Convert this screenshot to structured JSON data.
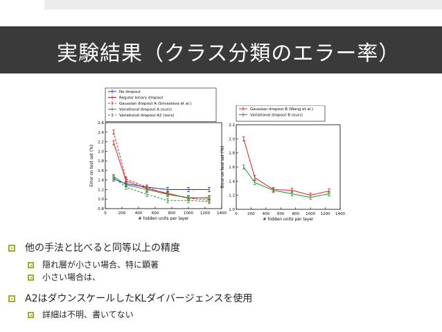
{
  "slide": {
    "title": "実験結果（クラス分類のエラー率）",
    "colors": {
      "title_bar": "#3a3a3a",
      "bullet_accent": "#9aae2e"
    }
  },
  "bullets": [
    {
      "text": "他の手法と比べると同等以上の精度",
      "level": 1
    },
    {
      "text": "隠れ層が小さい場合、特に顕著",
      "level": 2
    },
    {
      "text": "小さい場合は、",
      "level": 2
    },
    {
      "text": "A2はダウンスケールしたKLダイバージェンスを使用",
      "level": 1
    },
    {
      "text": "詳細は不明、書いてない",
      "level": 2
    }
  ],
  "chart_data": [
    {
      "type": "line",
      "xlabel": "# hidden units per layer",
      "ylabel": "Error on test set (%)",
      "xlim": [
        0,
        1400
      ],
      "ylim": [
        0.8,
        2.6
      ],
      "xticks": [
        "0",
        "200",
        "400",
        "600",
        "800",
        "1000",
        "1200",
        "1400"
      ],
      "yticks": [
        "0.8",
        "1.0",
        "1.2",
        "1.4",
        "1.6",
        "1.8",
        "2.0",
        "2.2",
        "2.4",
        "2.6"
      ],
      "legend": "top-left",
      "series": [
        {
          "name": "No dropout",
          "color": "#1f2bd0",
          "dash": false,
          "x": [
            100,
            250,
            500,
            750,
            1000,
            1250
          ],
          "y": [
            1.42,
            1.32,
            1.25,
            1.2,
            1.2,
            1.2
          ]
        },
        {
          "name": "Regular binary dropout",
          "color": "#d42020",
          "dash": false,
          "x": [
            100,
            250,
            500,
            750,
            1000,
            1250
          ],
          "y": [
            2.18,
            1.38,
            1.22,
            1.12,
            1.02,
            1.03
          ]
        },
        {
          "name": "Gaussian dropout A (Srivastava et al.)",
          "color": "#d42020",
          "dash": true,
          "x": [
            100,
            250,
            500,
            750,
            1000,
            1250
          ],
          "y": [
            2.4,
            1.42,
            1.25,
            1.1,
            1.02,
            0.98
          ]
        },
        {
          "name": "Variational dropout A (ours)",
          "color": "#2a8a2a",
          "dash": false,
          "x": [
            100,
            250,
            500,
            750,
            1000,
            1250
          ],
          "y": [
            1.47,
            1.3,
            1.2,
            1.1,
            1.03,
            1.02
          ]
        },
        {
          "name": "Variational dropout A2 (ours)",
          "color": "#2a8a2a",
          "dash": true,
          "x": [
            100,
            250,
            500,
            750,
            1000,
            1250
          ],
          "y": [
            1.45,
            1.25,
            1.1,
            0.97,
            0.97,
            0.95
          ]
        }
      ]
    },
    {
      "type": "line",
      "xlabel": "# hidden units per layer",
      "ylabel": "Error on test set (%)",
      "xlim": [
        0,
        1400
      ],
      "ylim": [
        1.0,
        2.2
      ],
      "xticks": [
        "0",
        "200",
        "400",
        "600",
        "800",
        "1000",
        "1200",
        "1400"
      ],
      "yticks": [
        "1.0",
        "1.2",
        "1.4",
        "1.6",
        "1.8",
        "2.0",
        "2.2"
      ],
      "legend": "top-left",
      "series": [
        {
          "name": "Gaussian dropout B (Wang et al.)",
          "color": "#d42020",
          "dash": false,
          "x": [
            100,
            250,
            500,
            750,
            1000,
            1250
          ],
          "y": [
            2.0,
            1.45,
            1.28,
            1.27,
            1.2,
            1.26
          ]
        },
        {
          "name": "Variational dropout B (ours)",
          "color": "#2a8a2a",
          "dash": false,
          "x": [
            100,
            250,
            500,
            750,
            1000,
            1250
          ],
          "y": [
            1.6,
            1.38,
            1.27,
            1.22,
            1.17,
            1.22
          ]
        }
      ]
    }
  ]
}
